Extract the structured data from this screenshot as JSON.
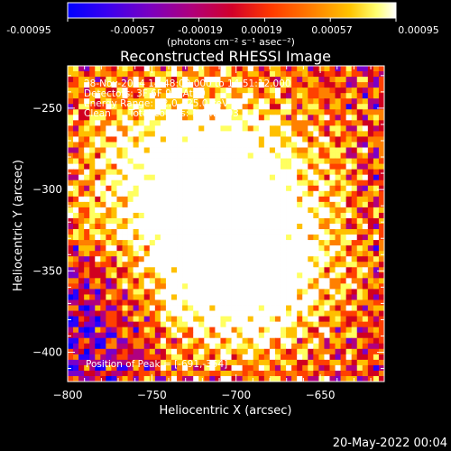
{
  "colors": {
    "background": "#000000",
    "text": "#ffffff",
    "colormap": [
      "#0000ff",
      "#2a00ff",
      "#7a00c8",
      "#b00080",
      "#d00020",
      "#ff4000",
      "#ff8000",
      "#ffc000",
      "#ffff60",
      "#ffffff"
    ]
  },
  "colorbar": {
    "tick_labels": [
      "-0.00095",
      "-0.00057",
      "-0.00019",
      "0.00019",
      "0.00057",
      "0.00095"
    ],
    "units_label": "(photons cm⁻² s⁻¹ asec⁻²)",
    "range": [
      -0.00095,
      0.00095
    ]
  },
  "plot": {
    "title": "Reconstructed RHESSI Image",
    "info_lines": [
      "28-Nov-2014 14:48:00.000 to 14:51:12.000",
      "Detectors: 3F 6F 9F, Att 0",
      "Energy Range: 12.0 - 25.0 keV",
      "Clean      Total counts: 1.64E+03"
    ],
    "peak_label": "Position of Peak = [-691,-354]"
  },
  "chart_data": {
    "type": "heatmap",
    "title": "Reconstructed RHESSI Image",
    "xlabel": "Heliocentric X (arcsec)",
    "ylabel": "Heliocentric Y (arcsec)",
    "xlim": [
      -800,
      -612
    ],
    "ylim": [
      -418,
      -224
    ],
    "x_ticks": [
      -800,
      -750,
      -700,
      -650
    ],
    "y_ticks": [
      -250,
      -300,
      -350,
      -400
    ],
    "x_tick_labels": [
      "−800",
      "−750",
      "−700",
      "−650"
    ],
    "y_tick_labels": [
      "−250",
      "−300",
      "−350",
      "−400"
    ],
    "peak_position": [
      -691,
      -354
    ],
    "grid": false
  },
  "footer": {
    "timestamp": "20-May-2022 00:04"
  }
}
